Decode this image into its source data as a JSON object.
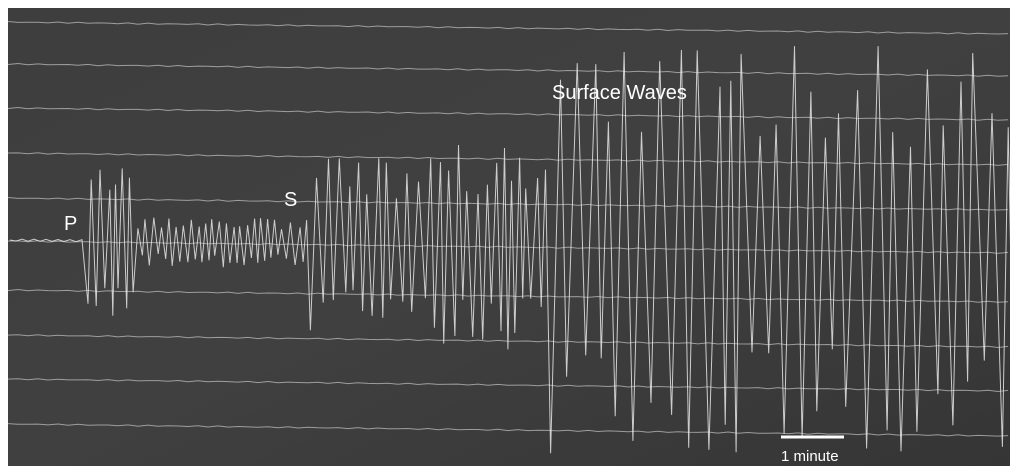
{
  "labels": {
    "p": "P",
    "s": "S",
    "surface": "Surface Waves",
    "scale": "1 minute"
  }
}
